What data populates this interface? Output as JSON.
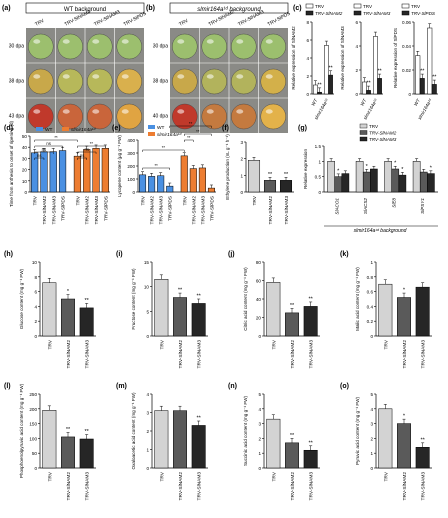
{
  "colors": {
    "trv_grey": "#d3d3d3",
    "dark_grey": "#5a5a5a",
    "black_bar": "#262626",
    "wt_blue": "#4a90e2",
    "mut_orange": "#ed7d31",
    "photo_bg": "#8a8a86",
    "tomato_green": "#9cbf6e",
    "tomato_yellow": "#c8a84a",
    "tomato_red": "#c0392b"
  },
  "panels": {
    "a": {
      "letter": "(a)",
      "banner": "WT background",
      "columns": [
        "TRV",
        "TRV-SlNAM2",
        "TRV-SlNAM3",
        "TRV-SlPDS"
      ],
      "rows": [
        "30 dpa",
        "38 dpa",
        "43 dpa"
      ]
    },
    "b": {
      "letter": "(b)",
      "banner": "slmir164a¹ᵈ background",
      "columns": [
        "TRV",
        "TRV-SlNAM2",
        "TRV-SlNAM3",
        "TRV-SlPDS"
      ],
      "rows": [
        "30 dpa",
        "38 dpa",
        "40 dpa"
      ]
    },
    "c": {
      "letter": "(c)",
      "legend": [
        {
          "text": "TRV",
          "fill": "#ffffff"
        },
        {
          "text": "TRV-SlNAM2",
          "fill": "#262626"
        },
        {
          "text": "TRV",
          "fill": "#ffffff"
        },
        {
          "text": "TRV-SlNAM3",
          "fill": "#262626"
        },
        {
          "text": "TRV",
          "fill": "#ffffff"
        },
        {
          "text": "TRV-SlPDS",
          "fill": "#262626"
        }
      ],
      "x_labels": [
        "WT",
        "slmir164a¹ᵈ"
      ],
      "y_labels": [
        "Relative expression of SlNAM2",
        "Relative expression of SlNAM3",
        "Relative expression of SlPDS"
      ]
    },
    "d": {
      "letter": "(d)",
      "legend": [
        "WT",
        "slmir164a¹ᵈ"
      ],
      "ylabel": "Time from anthesis to onset of ripening (d)",
      "sig": [
        "ns",
        "ns",
        "ns",
        "**",
        "ns",
        "ns",
        "**",
        "**"
      ]
    },
    "e": {
      "letter": "(e)",
      "legend": [
        "WT",
        "slmir164a¹ᵈ"
      ],
      "ylabel": "Lycopene content (μg g⁻¹ FW)",
      "sig": [
        "**",
        "**",
        "**",
        "**",
        "**"
      ]
    },
    "f": {
      "letter": "(f)",
      "ylabel": "Ethylene production (nL g⁻¹ h⁻¹)",
      "sig": [
        "**",
        "**"
      ]
    },
    "g": {
      "letter": "(g)",
      "legend": [
        "TRV",
        "TRV-SlNAM2",
        "TRV-SlNAM3"
      ],
      "ylabel": "Relative expression",
      "footer": "slmir164a¹ᵈ background",
      "sig": [
        "*",
        "*",
        "*",
        "*",
        "*"
      ]
    },
    "h": {
      "letter": "(h)",
      "ylabel": "Glucose content (mg g⁻¹ FW)",
      "sig": [
        "*",
        "**"
      ]
    },
    "i": {
      "letter": "(i)",
      "ylabel": "Fructose content (mg g⁻¹ FW)",
      "sig": [
        "**",
        "**"
      ]
    },
    "j": {
      "letter": "(j)",
      "ylabel": "Citric acid content (mg g⁻¹ FW)",
      "sig": [
        "**",
        "**"
      ]
    },
    "k": {
      "letter": "(k)",
      "ylabel": "Malic acid content (mg g⁻¹ FW)",
      "sig": [
        "*"
      ]
    },
    "l": {
      "letter": "(l)",
      "ylabel": "Phosphoenolpyruvic acid content (mg g⁻¹ FW)",
      "sig": [
        "**",
        "**"
      ]
    },
    "m": {
      "letter": "(m)",
      "ylabel": "Oxaloacetic acid content (mg g⁻¹ FW)",
      "sig": [
        "**"
      ]
    },
    "n": {
      "letter": "(n)",
      "ylabel": "Succinic acid content (mg g⁻¹ FW)",
      "sig": [
        "**",
        "**"
      ]
    },
    "o": {
      "letter": "(o)",
      "ylabel": "Pyruvic acid content (mg g⁻¹ FW)",
      "sig": [
        "*",
        "**"
      ]
    }
  },
  "chart_data": [
    {
      "id": "c1",
      "type": "bar",
      "categories": [
        "WT",
        "slmir164a¹ᵈ"
      ],
      "series": [
        {
          "name": "TRV",
          "values": [
            1.0,
            5.4
          ]
        },
        {
          "name": "TRV-SlNAM2",
          "values": [
            0.2,
            2.1
          ]
        }
      ],
      "ylim": [
        0,
        8
      ],
      "yticks": [
        0,
        2,
        4,
        6,
        8
      ],
      "ylabel": "Relative expression of SlNAM2",
      "sig": [
        "**",
        "**"
      ]
    },
    {
      "id": "c2",
      "type": "bar",
      "categories": [
        "WT",
        "slmir164a¹ᵈ"
      ],
      "series": [
        {
          "name": "TRV",
          "values": [
            1.0,
            4.8
          ]
        },
        {
          "name": "TRV-SlNAM3",
          "values": [
            0.3,
            1.3
          ]
        }
      ],
      "ylim": [
        0,
        6
      ],
      "yticks": [
        0,
        2,
        4,
        6
      ],
      "ylabel": "Relative expression of SlNAM3",
      "sig": [
        "**",
        "**"
      ]
    },
    {
      "id": "c3",
      "type": "bar",
      "categories": [
        "WT",
        "slmir164a¹ᵈ"
      ],
      "series": [
        {
          "name": "TRV",
          "values": [
            0.032,
            0.055
          ]
        },
        {
          "name": "TRV-SlPDS",
          "values": [
            0.013,
            0.008
          ]
        }
      ],
      "ylim": [
        0,
        0.06
      ],
      "yticks": [
        0.0,
        0.02,
        0.04,
        0.06
      ],
      "ylabel": "Relative expression of SlPDS",
      "sig": [
        "**",
        "**"
      ]
    },
    {
      "id": "d",
      "type": "bar",
      "categories": [
        "TRV",
        "TRV-SlNAM2",
        "TRV-SlNAM3",
        "TRV-SlPDS",
        "TRV",
        "TRV-SlNAM2",
        "TRV-SlNAM3",
        "TRV-SlPDS"
      ],
      "groups": [
        "WT",
        "WT",
        "WT",
        "WT",
        "slmir164a¹ᵈ",
        "slmir164a¹ᵈ",
        "slmir164a¹ᵈ",
        "slmir164a¹ᵈ"
      ],
      "values": [
        35,
        36,
        36,
        37,
        32,
        38,
        39,
        39
      ],
      "ylim": [
        0,
        50
      ],
      "yticks": [
        0,
        10,
        20,
        30,
        40,
        50
      ],
      "ylabel": "Time from anthesis to onset of ripening (d)"
    },
    {
      "id": "e",
      "type": "bar",
      "categories": [
        "TRV",
        "TRV-SlNAM2",
        "TRV-SlNAM3",
        "TRV-SlPDS",
        "TRV",
        "TRV-SlNAM2",
        "TRV-SlNAM3",
        "TRV-SlPDS"
      ],
      "groups": [
        "WT",
        "WT",
        "WT",
        "WT",
        "slmir164a¹ᵈ",
        "slmir164a¹ᵈ",
        "slmir164a¹ᵈ",
        "slmir164a¹ᵈ"
      ],
      "values": [
        132,
        120,
        125,
        45,
        278,
        180,
        185,
        30
      ],
      "ylim": [
        0,
        400
      ],
      "yticks": [
        0,
        100,
        200,
        300,
        400
      ],
      "ylabel": "Lycopene content (μg g⁻¹ FW)"
    },
    {
      "id": "f",
      "type": "bar",
      "categories": [
        "TRV",
        "TRV-SlNAM2",
        "TRV-SlNAM3"
      ],
      "values": [
        1.9,
        0.7,
        0.7
      ],
      "ylim": [
        0,
        3
      ],
      "yticks": [
        0,
        1,
        2,
        3
      ],
      "ylabel": "Ethylene production (nL g⁻¹ h⁻¹)"
    },
    {
      "id": "g",
      "type": "bar",
      "categories": [
        "SlACO1",
        "SlACS2",
        "SlE8",
        "SlPSY1"
      ],
      "series": [
        {
          "name": "TRV",
          "values": [
            1.0,
            1.0,
            1.0,
            1.0
          ]
        },
        {
          "name": "TRV-SlNAM2",
          "values": [
            0.5,
            0.65,
            0.75,
            0.65
          ]
        },
        {
          "name": "TRV-SlNAM3",
          "values": [
            0.6,
            0.75,
            0.55,
            0.6
          ]
        }
      ],
      "ylim": [
        0,
        1.5
      ],
      "yticks": [
        0.0,
        0.5,
        1.0,
        1.5
      ],
      "ylabel": "Relative expression"
    },
    {
      "id": "h",
      "type": "bar",
      "categories": [
        "TRV",
        "TRV-SlNAM2",
        "TRV-SlNAM3"
      ],
      "values": [
        7.2,
        5.0,
        3.8
      ],
      "ylim": [
        0,
        10
      ],
      "yticks": [
        0,
        2,
        4,
        6,
        8,
        10
      ],
      "ylabel": "Glucose content (mg g⁻¹ FW)"
    },
    {
      "id": "i",
      "type": "bar",
      "categories": [
        "TRV",
        "TRV-SlNAM2",
        "TRV-SlNAM3"
      ],
      "values": [
        11.5,
        7.8,
        6.6
      ],
      "ylim": [
        0,
        15
      ],
      "yticks": [
        0,
        5,
        10,
        15
      ],
      "ylabel": "Fructose content (mg g⁻¹ FW)"
    },
    {
      "id": "j",
      "type": "bar",
      "categories": [
        "TRV",
        "TRV-SlNAM2",
        "TRV-SlNAM3"
      ],
      "values": [
        58,
        25,
        32
      ],
      "ylim": [
        0,
        80
      ],
      "yticks": [
        0,
        20,
        40,
        60,
        80
      ],
      "ylabel": "Citric acid content (mg g⁻¹ FW)"
    },
    {
      "id": "k",
      "type": "bar",
      "categories": [
        "TRV",
        "TRV-SlNAM2",
        "TRV-SlNAM3"
      ],
      "values": [
        0.7,
        0.52,
        0.66
      ],
      "ylim": [
        0,
        1.0
      ],
      "yticks": [
        0.0,
        0.2,
        0.4,
        0.6,
        0.8,
        1.0
      ],
      "ylabel": "Malic acid content (mg g⁻¹ FW)"
    },
    {
      "id": "l",
      "type": "bar",
      "categories": [
        "TRV",
        "TRV-SlNAM2",
        "TRV-SlNAM3"
      ],
      "values": [
        195,
        105,
        98
      ],
      "ylim": [
        0,
        250
      ],
      "yticks": [
        0,
        50,
        100,
        150,
        200,
        250
      ],
      "ylabel": "Phosphoenolpyruvic acid content (mg g⁻¹ FW)"
    },
    {
      "id": "m",
      "type": "bar",
      "categories": [
        "TRV",
        "TRV-SlNAM2",
        "TRV-SlNAM3"
      ],
      "values": [
        3.1,
        3.1,
        2.3
      ],
      "ylim": [
        0,
        4
      ],
      "yticks": [
        0,
        1,
        2,
        3,
        4
      ],
      "ylabel": "Oxaloacetic acid content (mg g⁻¹ FW)"
    },
    {
      "id": "n",
      "type": "bar",
      "categories": [
        "TRV",
        "TRV-SlNAM2",
        "TRV-SlNAM3"
      ],
      "values": [
        3.3,
        1.7,
        1.2
      ],
      "ylim": [
        0,
        5
      ],
      "yticks": [
        0,
        1,
        2,
        3,
        4,
        5
      ],
      "ylabel": "Succinic acid content (mg g⁻¹ FW)"
    },
    {
      "id": "o",
      "type": "bar",
      "categories": [
        "TRV",
        "TRV-SlNAM2",
        "TRV-SlNAM3"
      ],
      "values": [
        4.0,
        3.0,
        1.4
      ],
      "ylim": [
        0,
        5
      ],
      "yticks": [
        0,
        1,
        2,
        3,
        4,
        5
      ],
      "ylabel": "Pyruvic acid content (mg g⁻¹ FW)"
    }
  ]
}
